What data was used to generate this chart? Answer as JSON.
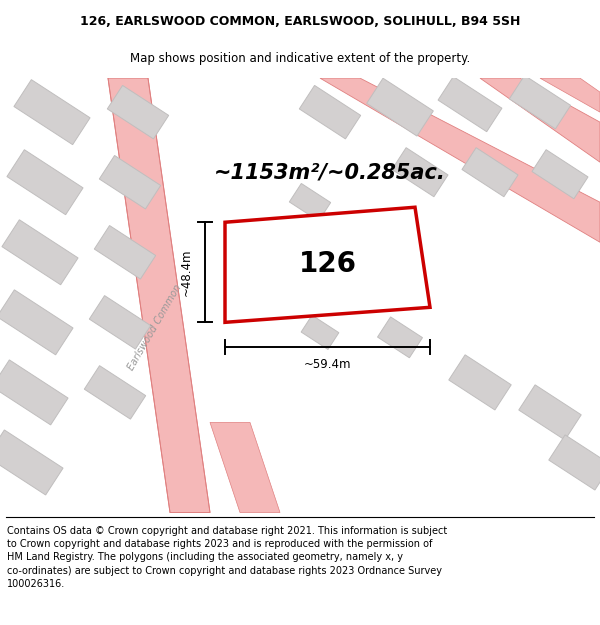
{
  "title_line1": "126, EARLSWOOD COMMON, EARLSWOOD, SOLIHULL, B94 5SH",
  "title_line2": "Map shows position and indicative extent of the property.",
  "area_text": "~1153m²/~0.285ac.",
  "plot_number": "126",
  "dim_width": "~59.4m",
  "dim_height": "~48.4m",
  "street_label": "Earlswood Common",
  "footer_lines": [
    "Contains OS data © Crown copyright and database right 2021. This information is subject to Crown copyright and database rights 2023 and is reproduced with the permission of",
    "HM Land Registry. The polygons (including the associated geometry, namely x, y co-ordinates) are subject to Crown copyright and database rights 2023 Ordnance Survey",
    "100026316."
  ],
  "map_bg": "#ffffff",
  "plot_color": "#cc0000",
  "road_color": "#f5b8b8",
  "road_edge_color": "#e08080",
  "building_color": "#d3d0d0",
  "building_edge_color": "#c0bebe",
  "title_fontsize": 9.0,
  "subtitle_fontsize": 8.5,
  "area_fontsize": 15,
  "plot_num_fontsize": 20,
  "dim_fontsize": 8.5,
  "street_fontsize": 7.0,
  "footer_fontsize": 7.0
}
